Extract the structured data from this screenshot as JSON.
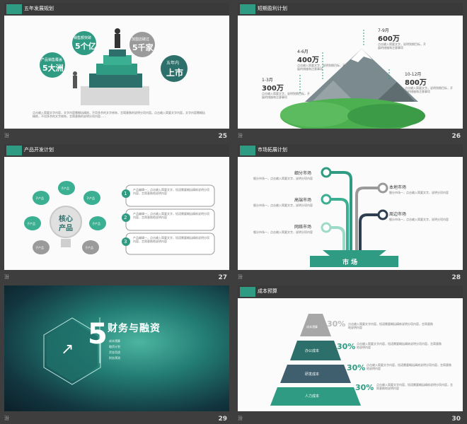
{
  "slides": [
    {
      "title": "五年发展规划",
      "page": "25",
      "mark": "汾",
      "bubbles": {
        "b1": {
          "l1": "销售额突破",
          "l2": "5个亿"
        },
        "b2": {
          "l1": "加盟店破过",
          "l2": "5千家"
        },
        "b3": {
          "l1": "产品销售覆盖",
          "l2": "5大洲"
        },
        "b4": {
          "l1": "五年内",
          "l2": "上市"
        }
      },
      "body": "点击输入简要文字内容，文字内容需概括精炼，不用多余的文字修饰，言简意赅的说明分项内容。点击输入简要文字内容，文字内容需概括精炼，不用多余的文字修饰，言简意赅的说明分项内容……"
    },
    {
      "title": "短期盈利计划",
      "page": "26",
      "mark": "汾",
      "labels": [
        {
          "period": "1-3月",
          "amount": "300万"
        },
        {
          "period": "4-6月",
          "amount": "400万"
        },
        {
          "period": "7-9月",
          "amount": "600万"
        },
        {
          "period": "10-12月",
          "amount": "800万"
        }
      ],
      "desc": "点击输入简要文字，说明到期目标，开展的措施和注意事项"
    },
    {
      "title": "产品开发计划",
      "page": "27",
      "mark": "汾",
      "center": {
        "l1": "核心",
        "l2": "产品"
      },
      "petal": "子产品",
      "items": [
        {
          "num": "1",
          "text": "产品编辑一，点击输入简要文字，短语需要概括精炼说明分项内容，言简意赅地说明内容"
        },
        {
          "num": "2",
          "text": "产品编辑一，点击输入简要文字，短语需要概括精炼说明分项内容，言简意赅地说明内容"
        },
        {
          "num": "3",
          "text": "产品编辑一，点击输入简要文字，短语需要概括精炼说明分项内容，言简意赅地说明内容"
        }
      ]
    },
    {
      "title": "市场拓展计划",
      "page": "28",
      "mark": "汾",
      "left": [
        "细分市场",
        "高端市场",
        "网络市场"
      ],
      "right": [
        "本地市场",
        "周边市场"
      ],
      "base": "市 场",
      "desc": "细分市场一，点击输入简要文字，说明分项内容"
    },
    {
      "page": "29",
      "mark": "汾",
      "num": "5",
      "title": "财务与融资",
      "items": [
        "成本预算",
        "融资计划",
        "资金用途",
        "财务预测"
      ]
    },
    {
      "title": "成本预算",
      "page": "30",
      "mark": "汾",
      "layers": [
        {
          "label": "成本预算",
          "pct": "30%"
        },
        {
          "label": "办公成本",
          "pct": "30%"
        },
        {
          "label": "研发成本",
          "pct": "30%"
        },
        {
          "label": "人力成本",
          "pct": "30%"
        }
      ],
      "desc": "点击输入简要文字内容，短语需要概括精炼说明分项内容，言简意赅地说明内容"
    }
  ]
}
